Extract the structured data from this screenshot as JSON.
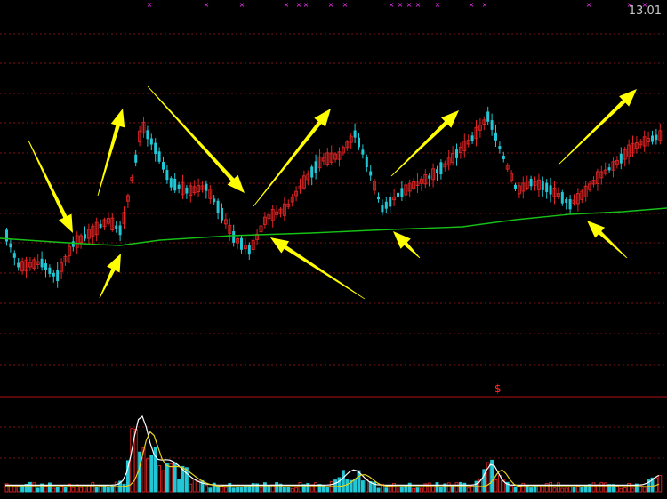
{
  "price_label": "13.01",
  "signal_symbol": "$",
  "colors": {
    "background": "#000000",
    "grid": "#7a1010",
    "up": "#e02424",
    "down": "#22c7d6",
    "ma_price": "#16c016",
    "arrow": "#ffff00",
    "marker": "#ff33ff",
    "vol_ma_white": "#ffffff",
    "vol_ma_yellow": "#e6d21a",
    "divider": "#b01010"
  },
  "chart_data": [
    {
      "type": "candlestick",
      "price_levels": [
        13.01
      ],
      "moving_average": "green line",
      "annotations": "yellow arrows marking swing highs and lows",
      "grid": true
    },
    {
      "type": "bar",
      "panel": "volume",
      "moving_averages": [
        "white",
        "yellow"
      ],
      "grid": true
    }
  ]
}
